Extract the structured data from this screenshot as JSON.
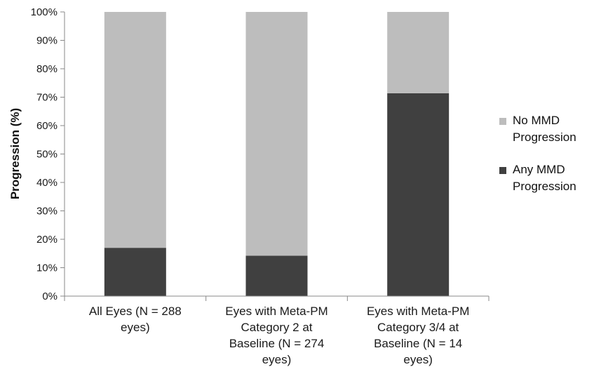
{
  "chart_data": {
    "type": "bar",
    "stacked": true,
    "percent_stacked": true,
    "categories": [
      [
        "All Eyes (N = 288",
        "eyes)"
      ],
      [
        "Eyes with Meta-PM",
        "Category 2 at",
        "Baseline (N = 274",
        "eyes)"
      ],
      [
        "Eyes with Meta-PM",
        "Category 3/4 at",
        "Baseline (N = 14",
        "eyes)"
      ]
    ],
    "series": [
      {
        "name": "Any MMD Progression",
        "color": "#404040",
        "values": [
          17.0,
          14.2,
          71.4
        ]
      },
      {
        "name": "No MMD Progression",
        "color": "#bdbdbd",
        "values": [
          83.0,
          85.8,
          28.6
        ]
      }
    ],
    "ylabel": "Progression (%)",
    "xlabel": "",
    "ylim": [
      0,
      100
    ],
    "yticks": [
      "0%",
      "10%",
      "20%",
      "30%",
      "40%",
      "50%",
      "60%",
      "70%",
      "80%",
      "90%",
      "100%"
    ],
    "grid": false,
    "legend_position": "right"
  },
  "legend": [
    {
      "lines": [
        "No MMD",
        "Progression"
      ],
      "color": "#bdbdbd"
    },
    {
      "lines": [
        "Any MMD",
        "Progression"
      ],
      "color": "#404040"
    }
  ]
}
